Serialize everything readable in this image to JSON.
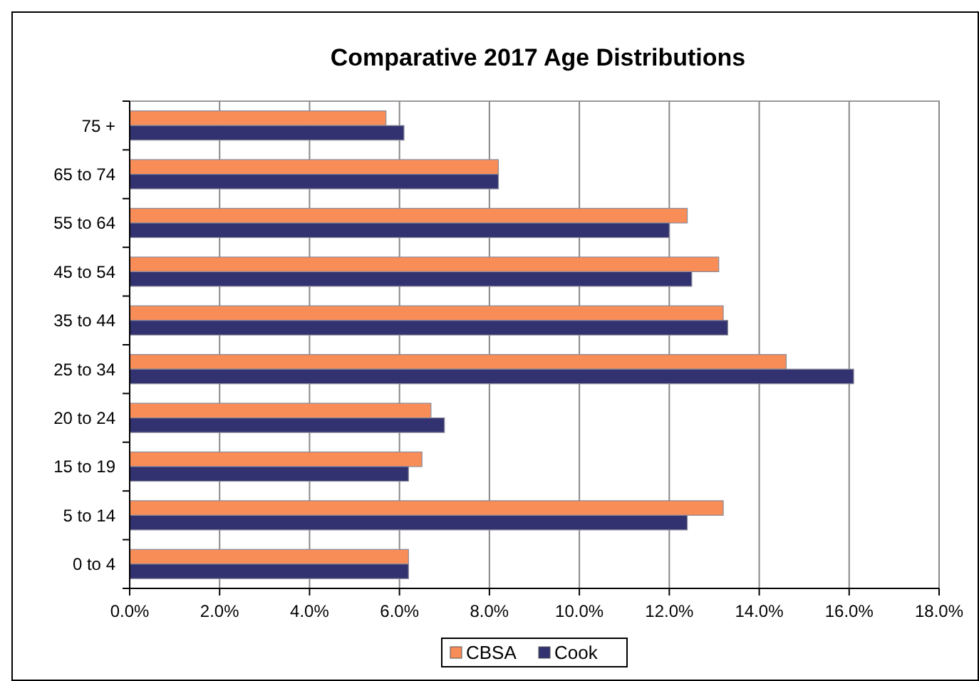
{
  "chart_data": {
    "type": "bar",
    "orientation": "horizontal",
    "title": "Comparative 2017 Age Distributions",
    "categories": [
      "75 +",
      "65 to 74",
      "55 to 64",
      "45 to 54",
      "35 to 44",
      "25 to 34",
      "20 to 24",
      "15 to 19",
      "5 to 14",
      "0 to 4"
    ],
    "series": [
      {
        "name": "CBSA",
        "color": "#f98d57",
        "values": [
          5.7,
          8.2,
          12.4,
          13.1,
          13.2,
          14.6,
          6.7,
          6.5,
          13.2,
          6.2
        ]
      },
      {
        "name": "Cook",
        "color": "#333270",
        "values": [
          6.1,
          8.2,
          12.0,
          12.5,
          13.3,
          16.1,
          7.0,
          6.2,
          12.4,
          6.2
        ]
      }
    ],
    "xlim": [
      0,
      18
    ],
    "xticks": [
      {
        "value": 0,
        "label": "0.0%"
      },
      {
        "value": 2,
        "label": "2.0%"
      },
      {
        "value": 4,
        "label": "4.0%"
      },
      {
        "value": 6,
        "label": "6.0%"
      },
      {
        "value": 8,
        "label": "8.0%"
      },
      {
        "value": 10,
        "label": "10.0%"
      },
      {
        "value": 12,
        "label": "12.0%"
      },
      {
        "value": 14,
        "label": "14.0%"
      },
      {
        "value": 16,
        "label": "16.0%"
      },
      {
        "value": 18,
        "label": "18.0%"
      }
    ],
    "grid": "x",
    "legend": "bottom"
  }
}
